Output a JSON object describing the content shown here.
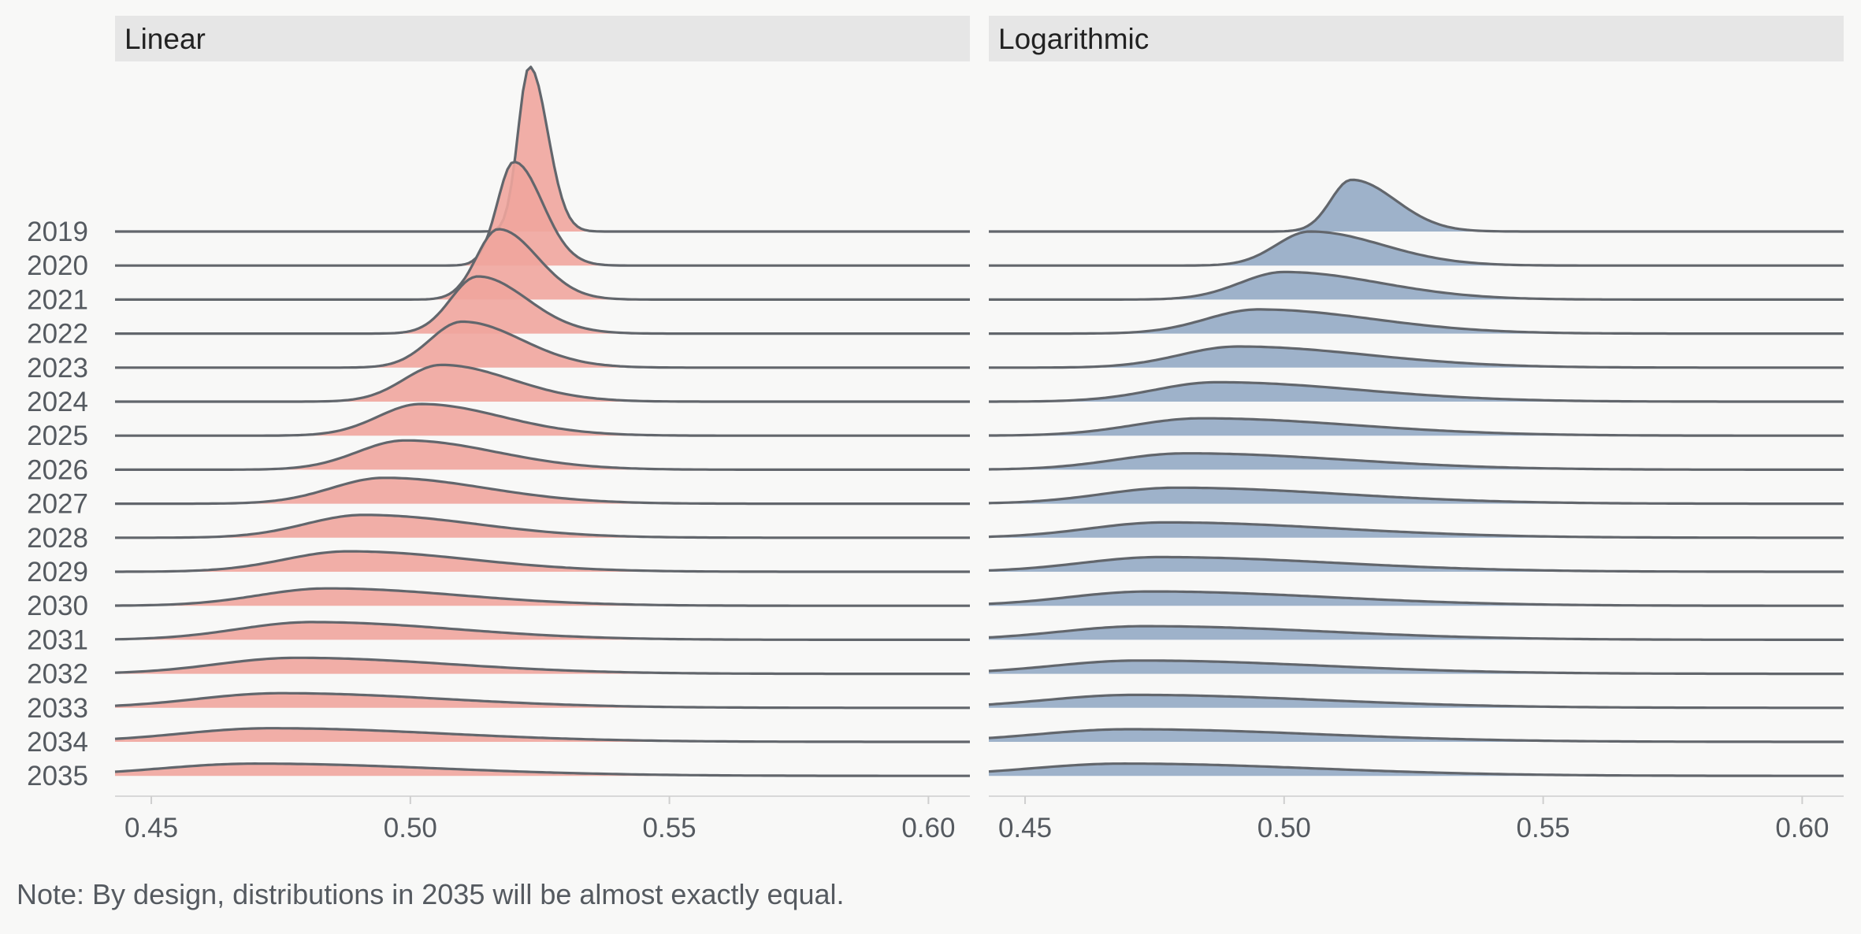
{
  "chart_data": [
    {
      "type": "area",
      "subtype": "ridgeline",
      "title": "Linear",
      "xlabel": "",
      "ylabel": "",
      "xlim": [
        0.443,
        0.608
      ],
      "xticks": [
        "0.45",
        "0.50",
        "0.55",
        "0.60"
      ],
      "xtick_values": [
        0.45,
        0.5,
        0.55,
        0.6
      ],
      "years": [
        "2019",
        "2020",
        "2021",
        "2022",
        "2023",
        "2024",
        "2025",
        "2026",
        "2027",
        "2028",
        "2029",
        "2030",
        "2031",
        "2032",
        "2033",
        "2034",
        "2035"
      ],
      "series": [
        {
          "year": "2019",
          "peak_x": 0.523,
          "peak_height": 4.85,
          "sigma_left": 0.0022,
          "sigma_right": 0.0035
        },
        {
          "year": "2020",
          "peak_x": 0.52,
          "peak_height": 3.05,
          "sigma_left": 0.0032,
          "sigma_right": 0.0055
        },
        {
          "year": "2021",
          "peak_x": 0.517,
          "peak_height": 2.07,
          "sigma_left": 0.0042,
          "sigma_right": 0.0075
        },
        {
          "year": "2022",
          "peak_x": 0.513,
          "peak_height": 1.68,
          "sigma_left": 0.0052,
          "sigma_right": 0.0095
        },
        {
          "year": "2023",
          "peak_x": 0.51,
          "peak_height": 1.35,
          "sigma_left": 0.0062,
          "sigma_right": 0.0115
        },
        {
          "year": "2024",
          "peak_x": 0.506,
          "peak_height": 1.08,
          "sigma_left": 0.0072,
          "sigma_right": 0.0135
        },
        {
          "year": "2025",
          "peak_x": 0.502,
          "peak_height": 0.93,
          "sigma_left": 0.0082,
          "sigma_right": 0.0155
        },
        {
          "year": "2026",
          "peak_x": 0.499,
          "peak_height": 0.86,
          "sigma_left": 0.0092,
          "sigma_right": 0.0175
        },
        {
          "year": "2027",
          "peak_x": 0.495,
          "peak_height": 0.76,
          "sigma_left": 0.0102,
          "sigma_right": 0.0195
        },
        {
          "year": "2028",
          "peak_x": 0.491,
          "peak_height": 0.67,
          "sigma_left": 0.0112,
          "sigma_right": 0.0215
        },
        {
          "year": "2029",
          "peak_x": 0.488,
          "peak_height": 0.6,
          "sigma_left": 0.0122,
          "sigma_right": 0.0235
        },
        {
          "year": "2030",
          "peak_x": 0.484,
          "peak_height": 0.51,
          "sigma_left": 0.0132,
          "sigma_right": 0.0255
        },
        {
          "year": "2031",
          "peak_x": 0.481,
          "peak_height": 0.52,
          "sigma_left": 0.0142,
          "sigma_right": 0.0275
        },
        {
          "year": "2032",
          "peak_x": 0.478,
          "peak_height": 0.47,
          "sigma_left": 0.0152,
          "sigma_right": 0.0295
        },
        {
          "year": "2033",
          "peak_x": 0.475,
          "peak_height": 0.43,
          "sigma_left": 0.0162,
          "sigma_right": 0.0315
        },
        {
          "year": "2034",
          "peak_x": 0.473,
          "peak_height": 0.4,
          "sigma_left": 0.0172,
          "sigma_right": 0.0335
        },
        {
          "year": "2035",
          "peak_x": 0.47,
          "peak_height": 0.36,
          "sigma_left": 0.0182,
          "sigma_right": 0.0355
        }
      ],
      "colors": {
        "fill": "#f0a59d",
        "outline": "#62666c"
      }
    },
    {
      "type": "area",
      "subtype": "ridgeline",
      "title": "Logarithmic",
      "xlabel": "",
      "ylabel": "",
      "xlim": [
        0.443,
        0.608
      ],
      "xticks": [
        "0.45",
        "0.50",
        "0.55",
        "0.60"
      ],
      "xtick_values": [
        0.45,
        0.5,
        0.55,
        0.6
      ],
      "years": [
        "2019",
        "2020",
        "2021",
        "2022",
        "2023",
        "2024",
        "2025",
        "2026",
        "2027",
        "2028",
        "2029",
        "2030",
        "2031",
        "2032",
        "2033",
        "2034",
        "2035"
      ],
      "series": [
        {
          "year": "2019",
          "peak_x": 0.513,
          "peak_height": 1.52,
          "sigma_left": 0.004,
          "sigma_right": 0.0085
        },
        {
          "year": "2020",
          "peak_x": 0.505,
          "peak_height": 1.0,
          "sigma_left": 0.0065,
          "sigma_right": 0.014
        },
        {
          "year": "2021",
          "peak_x": 0.5,
          "peak_height": 0.81,
          "sigma_left": 0.0085,
          "sigma_right": 0.0185
        },
        {
          "year": "2022",
          "peak_x": 0.495,
          "peak_height": 0.71,
          "sigma_left": 0.01,
          "sigma_right": 0.022
        },
        {
          "year": "2023",
          "peak_x": 0.491,
          "peak_height": 0.62,
          "sigma_left": 0.011,
          "sigma_right": 0.025
        },
        {
          "year": "2024",
          "peak_x": 0.487,
          "peak_height": 0.57,
          "sigma_left": 0.012,
          "sigma_right": 0.0275
        },
        {
          "year": "2025",
          "peak_x": 0.484,
          "peak_height": 0.51,
          "sigma_left": 0.013,
          "sigma_right": 0.0295
        },
        {
          "year": "2026",
          "peak_x": 0.481,
          "peak_height": 0.48,
          "sigma_left": 0.0135,
          "sigma_right": 0.031
        },
        {
          "year": "2027",
          "peak_x": 0.479,
          "peak_height": 0.47,
          "sigma_left": 0.014,
          "sigma_right": 0.032
        },
        {
          "year": "2028",
          "peak_x": 0.477,
          "peak_height": 0.45,
          "sigma_left": 0.0145,
          "sigma_right": 0.033
        },
        {
          "year": "2029",
          "peak_x": 0.476,
          "peak_height": 0.43,
          "sigma_left": 0.015,
          "sigma_right": 0.034
        },
        {
          "year": "2030",
          "peak_x": 0.474,
          "peak_height": 0.42,
          "sigma_left": 0.0155,
          "sigma_right": 0.0345
        },
        {
          "year": "2031",
          "peak_x": 0.473,
          "peak_height": 0.4,
          "sigma_left": 0.016,
          "sigma_right": 0.035
        },
        {
          "year": "2032",
          "peak_x": 0.472,
          "peak_height": 0.39,
          "sigma_left": 0.0165,
          "sigma_right": 0.0355
        },
        {
          "year": "2033",
          "peak_x": 0.471,
          "peak_height": 0.38,
          "sigma_left": 0.017,
          "sigma_right": 0.036
        },
        {
          "year": "2034",
          "peak_x": 0.47,
          "peak_height": 0.37,
          "sigma_left": 0.0175,
          "sigma_right": 0.0365
        },
        {
          "year": "2035",
          "peak_x": 0.469,
          "peak_height": 0.36,
          "sigma_left": 0.018,
          "sigma_right": 0.037
        }
      ],
      "colors": {
        "fill": "#93aac4",
        "outline": "#62666c"
      }
    }
  ],
  "note": "Note: By design, distributions in 2035 will be almost exactly equal.",
  "colors": {
    "background": "#f8f8f7",
    "strip": "#e6e6e6",
    "axis_text": "#555a60"
  }
}
